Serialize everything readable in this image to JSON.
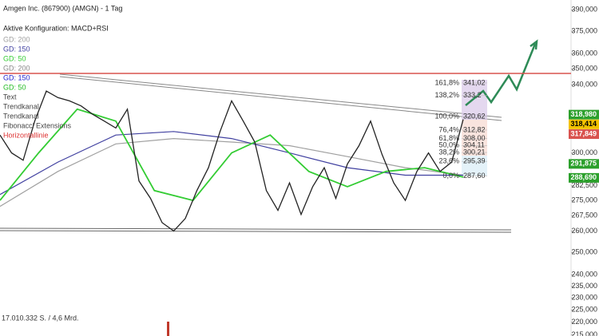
{
  "chart_data": {
    "type": "line",
    "title": "Amgen Inc. (867900) (AMGN) - 1 Tag",
    "subtitle": "Aktive Konfiguration: MACD+RSI",
    "volume_label": "17.010.332 S. / 4,6 Mrd.",
    "log_scale": true,
    "ylim": [
      214.5,
      397
    ],
    "yticks": [
      {
        "value": 390,
        "label": "390,000"
      },
      {
        "value": 375,
        "label": "375,000"
      },
      {
        "value": 360,
        "label": "360,000"
      },
      {
        "value": 350,
        "label": "350,000"
      },
      {
        "value": 340,
        "label": "340,000"
      },
      {
        "value": 300,
        "label": "300,000"
      },
      {
        "value": 282.5,
        "label": "282,500"
      },
      {
        "value": 275,
        "label": "275,000"
      },
      {
        "value": 267.5,
        "label": "267,500"
      },
      {
        "value": 260,
        "label": "260,000"
      },
      {
        "value": 250,
        "label": "250,000"
      },
      {
        "value": 240,
        "label": "240,000"
      },
      {
        "value": 235,
        "label": "235,000"
      },
      {
        "value": 230,
        "label": "230,000"
      },
      {
        "value": 225,
        "label": "225,000"
      },
      {
        "value": 220,
        "label": "220,000"
      },
      {
        "value": 215,
        "label": "215,000"
      }
    ],
    "price_color": "#222222",
    "values": [
      310,
      300,
      296,
      318,
      336,
      332,
      330,
      327,
      322,
      318,
      314,
      325,
      285,
      276,
      264,
      260,
      266,
      280,
      292,
      312,
      330,
      318,
      306,
      280,
      270,
      284,
      268,
      282,
      292,
      276,
      294,
      304,
      318,
      299,
      284,
      275,
      290,
      300,
      290,
      295,
      319
    ],
    "series": [
      {
        "name": "GD: 200",
        "color": "#a0a0a0",
        "values": [
          272,
          290,
          305,
          308,
          306,
          304,
          298,
          292,
          288
        ]
      },
      {
        "name": "GD: 150",
        "color": "#4040a0",
        "values": [
          278,
          295,
          310,
          312,
          308,
          300,
          292,
          288,
          288
        ]
      },
      {
        "name": "GD: 50",
        "color": "#33cc33",
        "values": [
          275,
          300,
          325,
          318,
          280,
          275,
          300,
          310,
          290,
          282,
          290,
          292,
          287
        ]
      }
    ],
    "legend_items": [
      {
        "text": "GD: 200",
        "color": "#888888"
      },
      {
        "text": "GD: 150",
        "color": "#2222cc"
      },
      {
        "text": "GD: 50",
        "color": "#22bb22"
      },
      {
        "text": "Text",
        "color": "#444444"
      },
      {
        "text": "Trendkanal",
        "color": "#444444"
      },
      {
        "text": "Trendkanal",
        "color": "#444444"
      },
      {
        "text": "Fibonacci Extensions",
        "color": "#444444"
      },
      {
        "text": "Horizontallinie",
        "color": "#dd3333"
      }
    ],
    "hline": {
      "value": 347,
      "color": "#d9534f"
    },
    "fib": [
      {
        "pct": "161,8%",
        "price": "341,02",
        "value": 341.02
      },
      {
        "pct": "138,2%",
        "price": "333,2",
        "value": 333.2
      },
      {
        "pct": "100,0%",
        "price": "320,62",
        "value": 320.62
      },
      {
        "pct": "76,4%",
        "price": "312,82",
        "value": 312.82
      },
      {
        "pct": "61,8%",
        "price": "308,00",
        "value": 308.0
      },
      {
        "pct": "50,0%",
        "price": "304,11",
        "value": 304.11
      },
      {
        "pct": "38,2%",
        "price": "300,21",
        "value": 300.21
      },
      {
        "pct": "23,6%",
        "price": "295,39",
        "value": 295.39
      },
      {
        "pct": "0,0%",
        "price": "287,60",
        "value": 287.6
      }
    ],
    "badges": [
      {
        "label": "318,980",
        "value": 318.98,
        "color": "#2ca02c"
      },
      {
        "label": "318,414",
        "value": 318.414,
        "color": "#f2c200"
      },
      {
        "label": "317,849",
        "value": 317.849,
        "color": "#d9534f"
      },
      {
        "label": "291,875",
        "value": 291.875,
        "color": "#2ca02c"
      },
      {
        "label": "288,690",
        "value": 288.69,
        "color": "#2ca02c"
      }
    ]
  }
}
